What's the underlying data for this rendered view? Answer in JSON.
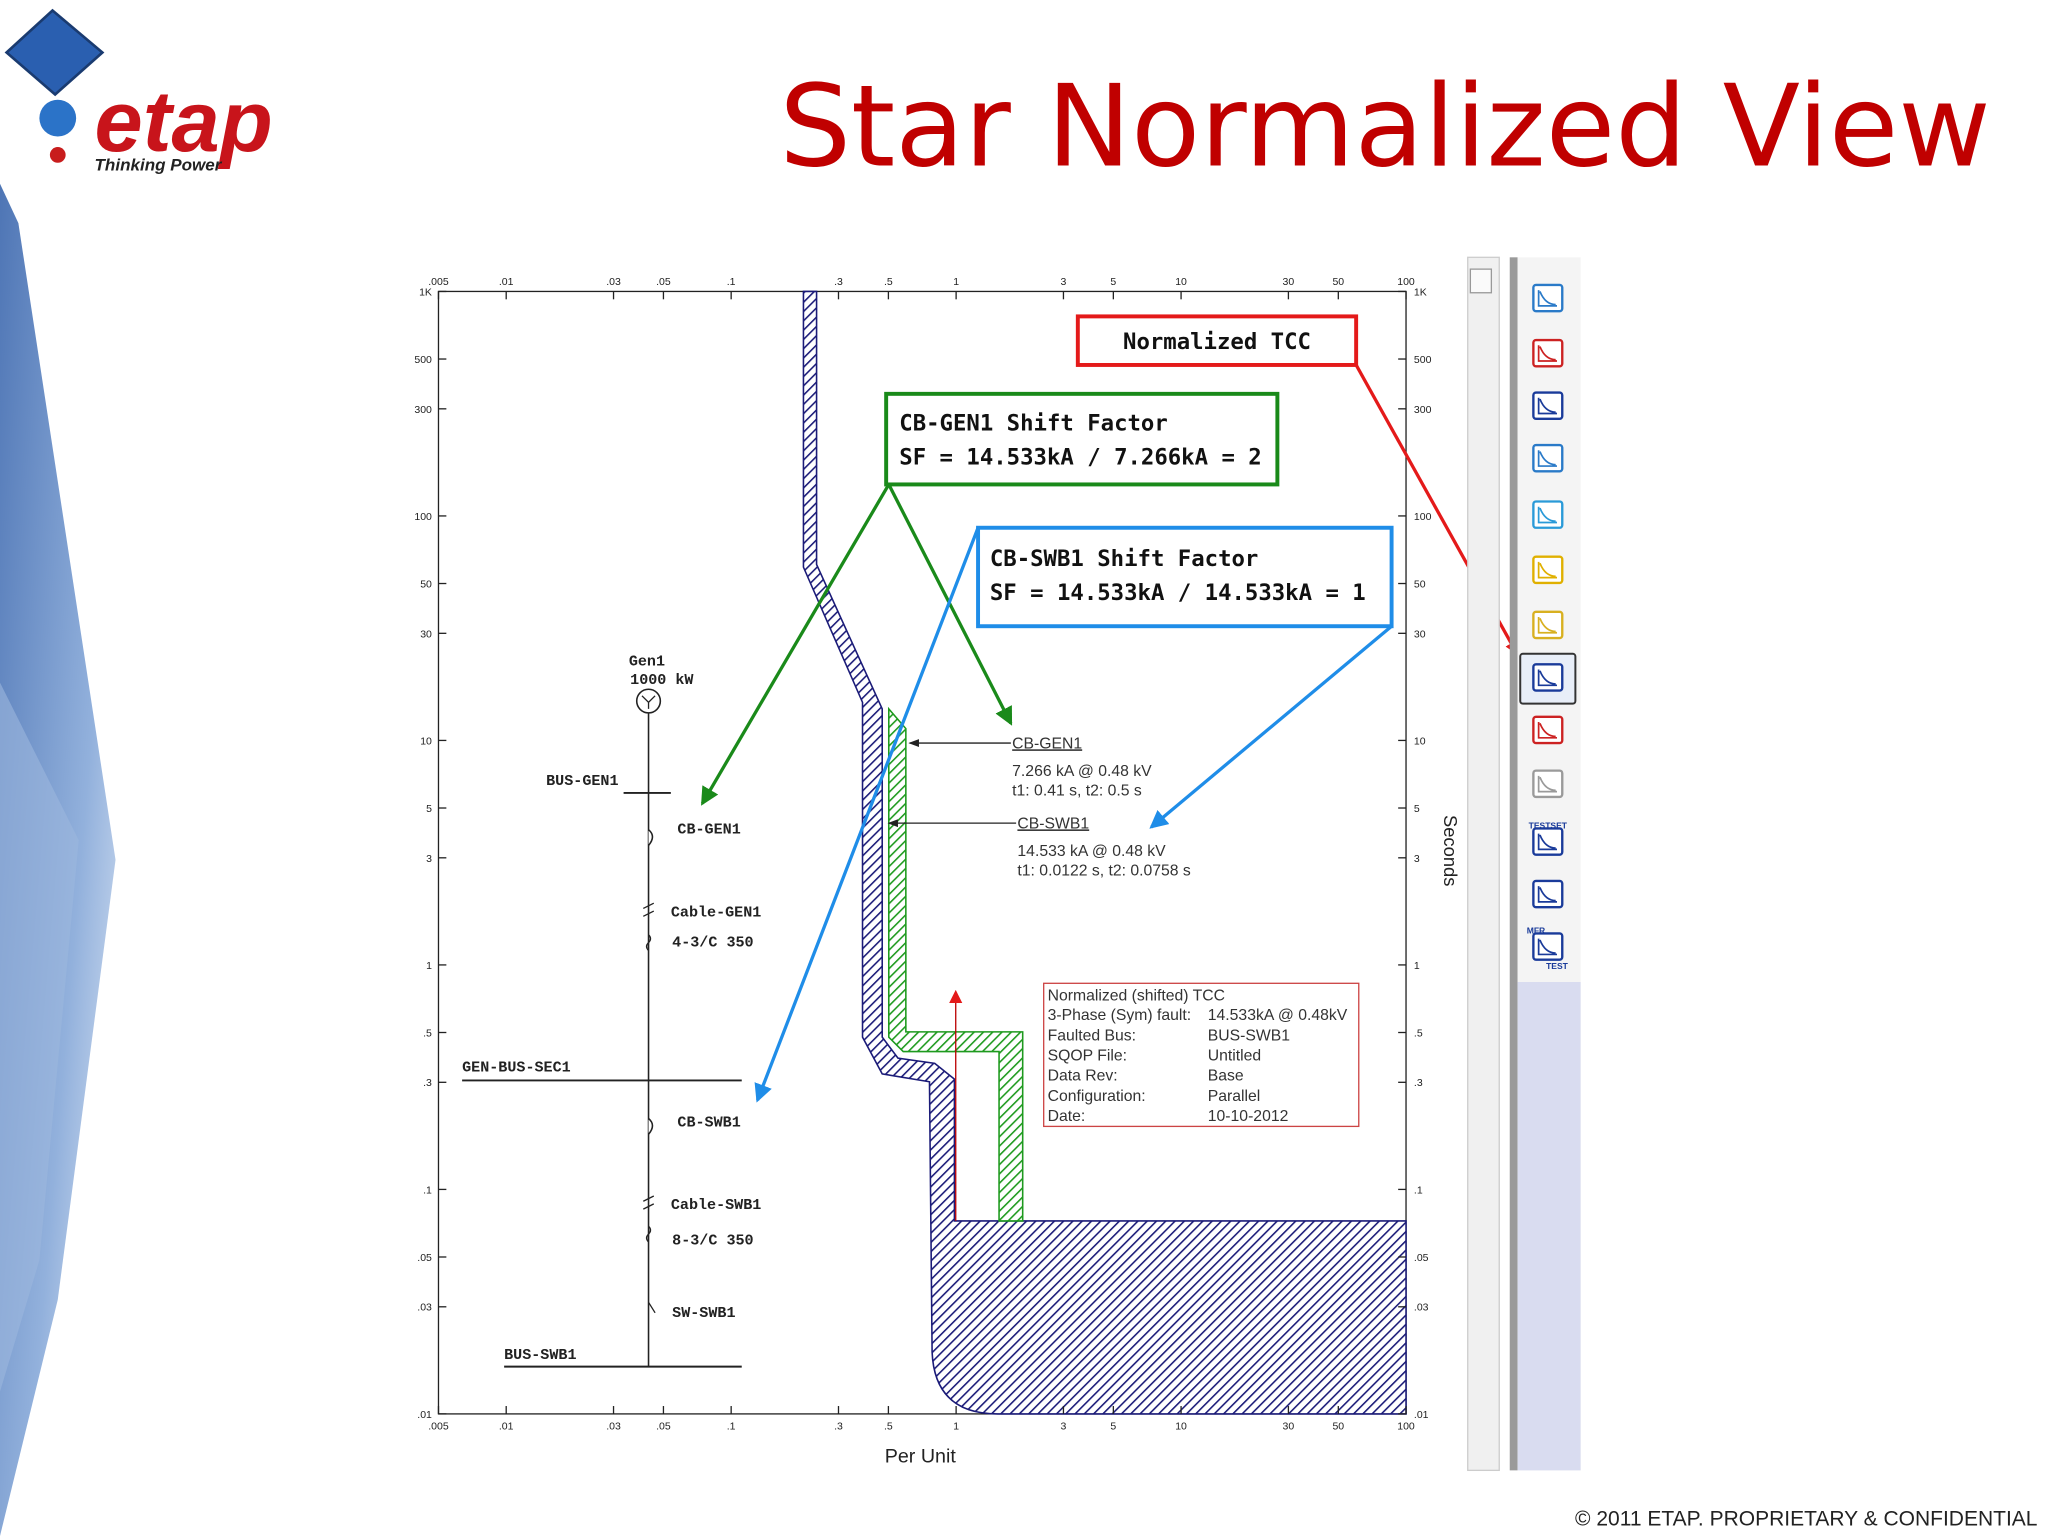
{
  "header": {
    "title": "Star Normalized View",
    "logo": {
      "brand": "etap",
      "tagline": "Thinking Power"
    }
  },
  "tcc": {
    "x_axis": {
      "label": "Per Unit",
      "scale": "log",
      "lim": [
        0.005,
        100
      ],
      "ticks": [
        {
          "value": 0.005,
          "label": ".005"
        },
        {
          "value": 0.01,
          "label": ".01"
        },
        {
          "value": 0.03,
          "label": ".03"
        },
        {
          "value": 0.05,
          "label": ".05"
        },
        {
          "value": 0.1,
          "label": ".1"
        },
        {
          "value": 0.3,
          "label": ".3"
        },
        {
          "value": 0.5,
          "label": ".5"
        },
        {
          "value": 1,
          "label": "1"
        },
        {
          "value": 3,
          "label": "3"
        },
        {
          "value": 5,
          "label": "5"
        },
        {
          "value": 10,
          "label": "10"
        },
        {
          "value": 30,
          "label": "30"
        },
        {
          "value": 50,
          "label": "50"
        },
        {
          "value": 100,
          "label": "100"
        }
      ]
    },
    "y_axis": {
      "label": "Seconds",
      "scale": "log",
      "lim": [
        0.01,
        1000
      ],
      "ticks": [
        {
          "value": 0.01,
          "label": ".01"
        },
        {
          "value": 0.03,
          "label": ".03"
        },
        {
          "value": 0.05,
          "label": ".05"
        },
        {
          "value": 0.1,
          "label": ".1"
        },
        {
          "value": 0.3,
          "label": ".3"
        },
        {
          "value": 0.5,
          "label": ".5"
        },
        {
          "value": 1,
          "label": "1"
        },
        {
          "value": 3,
          "label": "3"
        },
        {
          "value": 5,
          "label": "5"
        },
        {
          "value": 10,
          "label": "10"
        },
        {
          "value": 30,
          "label": "30"
        },
        {
          "value": 50,
          "label": "50"
        },
        {
          "value": 100,
          "label": "100"
        },
        {
          "value": 300,
          "label": "300"
        },
        {
          "value": 500,
          "label": "500"
        },
        {
          "value": 1000,
          "label": "1K"
        }
      ]
    },
    "callouts": [
      {
        "lines": [
          "Normalized TCC"
        ]
      },
      {
        "lines": [
          "CB-GEN1 Shift Factor",
          "SF = 14.533kA / 7.266kA = 2"
        ]
      },
      {
        "lines": [
          "CB-SWB1 Shift Factor",
          "SF = 14.533kA / 14.533kA = 1"
        ]
      }
    ],
    "curve_labels": [
      {
        "name": "CB-GEN1",
        "lines": [
          "7.266 kA @ 0.48 kV",
          "t1: 0.41 s, t2: 0.5 s"
        ]
      },
      {
        "name": "CB-SWB1",
        "lines": [
          "14.533 kA @ 0.48 kV",
          "t1: 0.0122 s, t2: 0.0758 s"
        ]
      }
    ],
    "one_line": {
      "gen_name": "Gen1",
      "gen_rating": "1000 kW",
      "bus_gen": "BUS-GEN1",
      "cb_gen": "CB-GEN1",
      "cable_gen": "Cable-GEN1",
      "cable_gen_size": "4-3/C 350",
      "bus_sec": "GEN-BUS-SEC1",
      "cb_swb": "CB-SWB1",
      "cable_swb": "Cable-SWB1",
      "cable_swb_size": "8-3/C 350",
      "sw_swb": "SW-SWB1",
      "bus_swb": "BUS-SWB1"
    },
    "info_box": {
      "title": "Normalized (shifted) TCC",
      "rows": [
        [
          "3-Phase (Sym) fault:",
          "14.533kA @ 0.48kV"
        ],
        [
          "Faulted Bus:",
          "BUS-SWB1"
        ],
        [
          "SQOP File:",
          "Untitled"
        ],
        [
          "Data Rev:",
          "Base"
        ],
        [
          "Configuration:",
          "Parallel"
        ],
        [
          "Date:",
          "10-10-2012"
        ]
      ]
    }
  },
  "toolbar": {
    "testset_label": "TESTSET",
    "mfr_label": "MFR",
    "test_label": "TEST"
  },
  "footer": "© 2011 ETAP. PROPRIETARY & CONFIDENTIAL"
}
